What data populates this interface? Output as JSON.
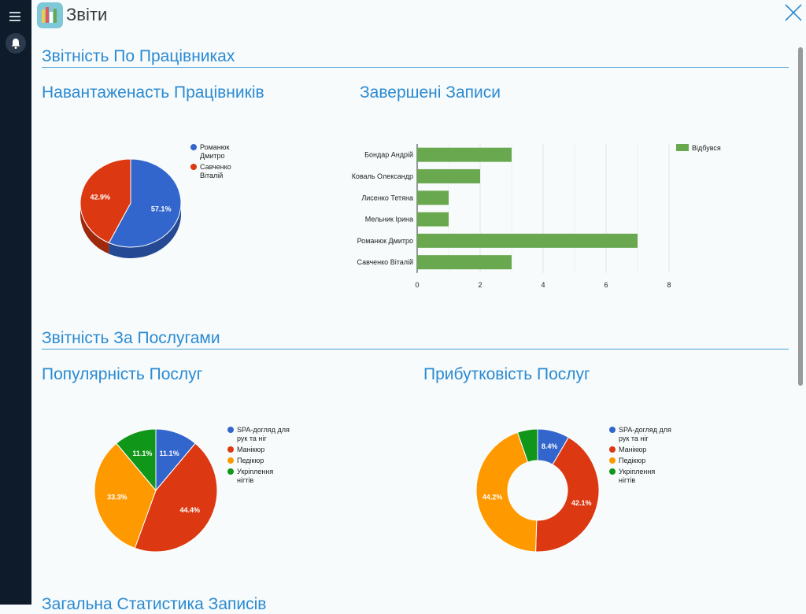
{
  "header": {
    "title": "Звіти"
  },
  "sections": {
    "employees": "Звітність По Працівниках",
    "services": "Звітність За Послугами",
    "general": "Загальна Статистика Записів"
  },
  "colors": {
    "blue": "#3366cc",
    "red": "#dc3912",
    "orange": "#ff9900",
    "green": "#109618",
    "bar": "#6aa84f",
    "accent": "#2b8ad1"
  },
  "chart_data": [
    {
      "id": "workload",
      "type": "pie",
      "style": "3d",
      "title": "Навантаженасть Працівників",
      "slices": [
        {
          "label": "Романюк Дмитро",
          "value": 57.1,
          "pct_text": "57.1%",
          "color": "#3366cc"
        },
        {
          "label": "Савченко Віталій",
          "value": 42.9,
          "pct_text": "42.9%",
          "color": "#dc3912"
        }
      ],
      "legend_position": "right"
    },
    {
      "id": "completed",
      "type": "bar",
      "orientation": "horizontal",
      "title": "Завершені Записи",
      "categories": [
        "Бондар Андрій",
        "Коваль Олександр",
        "Лисенко Тетяна",
        "Мельник Ірина",
        "Романюк Дмитро",
        "Савченко Віталій"
      ],
      "series": [
        {
          "name": "Відбувся",
          "values": [
            3,
            2,
            1,
            1,
            7,
            3
          ],
          "color": "#6aa84f"
        }
      ],
      "xlim": [
        0,
        8
      ],
      "xticks": [
        "0",
        "2",
        "4",
        "6",
        "8"
      ],
      "grid": true,
      "legend_position": "right"
    },
    {
      "id": "popularity",
      "type": "pie",
      "title": "Популярність Послуг",
      "slices": [
        {
          "label": "SPA-догляд для рук та ніг",
          "value": 11.1,
          "pct_text": "11.1%",
          "color": "#3366cc"
        },
        {
          "label": "Манікюр",
          "value": 44.4,
          "pct_text": "44.4%",
          "color": "#dc3912"
        },
        {
          "label": "Педікюр",
          "value": 33.3,
          "pct_text": "33.3%",
          "color": "#ff9900"
        },
        {
          "label": "Укріплення нігтів",
          "value": 11.1,
          "pct_text": "11.1%",
          "color": "#109618"
        }
      ],
      "legend_position": "right"
    },
    {
      "id": "profitability",
      "type": "pie",
      "style": "donut",
      "title": "Прибутковість Послуг",
      "slices": [
        {
          "label": "SPA-догляд для рук та ніг",
          "value": 8.4,
          "pct_text": "8.4%",
          "color": "#3366cc"
        },
        {
          "label": "Манікюр",
          "value": 42.1,
          "pct_text": "42.1%",
          "color": "#dc3912"
        },
        {
          "label": "Педікюр",
          "value": 44.2,
          "pct_text": "44.2%",
          "color": "#ff9900"
        },
        {
          "label": "Укріплення нігтів",
          "value": 5.3,
          "pct_text": "",
          "color": "#109618"
        }
      ],
      "legend_position": "right"
    }
  ]
}
